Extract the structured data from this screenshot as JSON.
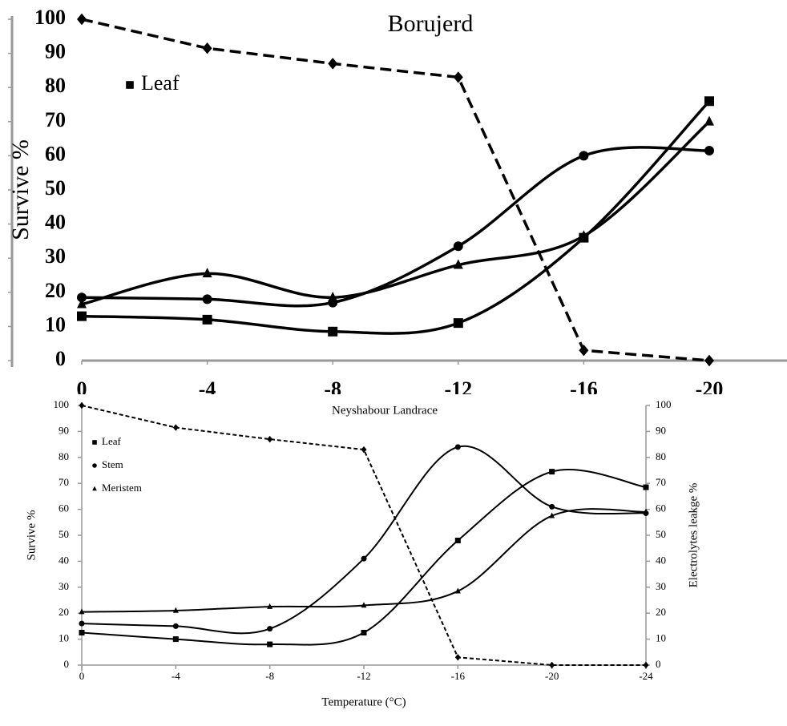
{
  "chart_data": [
    {
      "type": "line",
      "title": "Borujerd",
      "y_label": "Survive %",
      "x": [
        0,
        -4,
        -8,
        -12,
        -16,
        -20
      ],
      "xlim": [
        0,
        -24
      ],
      "xticks": [
        0,
        -4,
        -8,
        -12,
        -16,
        -20
      ],
      "ylim": [
        0,
        100
      ],
      "yticks": [
        0,
        10,
        20,
        30,
        40,
        50,
        60,
        70,
        80,
        90,
        100
      ],
      "series": [
        {
          "name": "Leaf",
          "color": "#000000",
          "marker": "square",
          "values": [
            13,
            12,
            8.5,
            11,
            36,
            76
          ]
        },
        {
          "color": "#000000",
          "marker": "circle",
          "values": [
            18.5,
            18,
            17,
            33.5,
            60,
            61.5
          ]
        },
        {
          "color": "#000000",
          "marker": "triangle",
          "values": [
            16.5,
            25.5,
            18.5,
            28,
            36.5,
            70
          ]
        },
        {
          "color": "#000000",
          "marker": "diamond",
          "dashed": true,
          "values": [
            100,
            91.5,
            87,
            83,
            3,
            0
          ]
        }
      ]
    },
    {
      "type": "line",
      "title": "Neyshabour Landrace",
      "x_label": "Temperature (°C)",
      "y_label": "Survive %",
      "y2_label": "Electrolytes leakge %",
      "x": [
        0,
        -4,
        -8,
        -12,
        -16,
        -20,
        -24
      ],
      "xlim": [
        0,
        -24
      ],
      "xticks": [
        0,
        -4,
        -8,
        -12,
        -16,
        -20,
        -24
      ],
      "ylim": [
        0,
        100
      ],
      "yticks": [
        0,
        10,
        20,
        30,
        40,
        50,
        60,
        70,
        80,
        90,
        100
      ],
      "y2lim": [
        0,
        100
      ],
      "y2ticks": [
        0,
        10,
        20,
        30,
        40,
        50,
        60,
        70,
        80,
        90,
        100
      ],
      "series": [
        {
          "name": "Leaf",
          "color": "#000000",
          "marker": "square",
          "values": [
            12.5,
            10,
            8,
            12.5,
            48,
            74.5,
            68.5
          ]
        },
        {
          "name": "Stem",
          "color": "#000000",
          "marker": "circle",
          "values": [
            16,
            15,
            14,
            41,
            84,
            61,
            58.5
          ]
        },
        {
          "name": "Meristem",
          "color": "#000000",
          "marker": "triangle",
          "values": [
            20.5,
            21,
            22.5,
            23,
            28.5,
            57.5,
            59
          ]
        },
        {
          "color": "#000000",
          "marker": "diamond",
          "dashed": true,
          "axis": "y2",
          "values": [
            100,
            91.5,
            87,
            83,
            3,
            0,
            0
          ]
        }
      ]
    }
  ]
}
